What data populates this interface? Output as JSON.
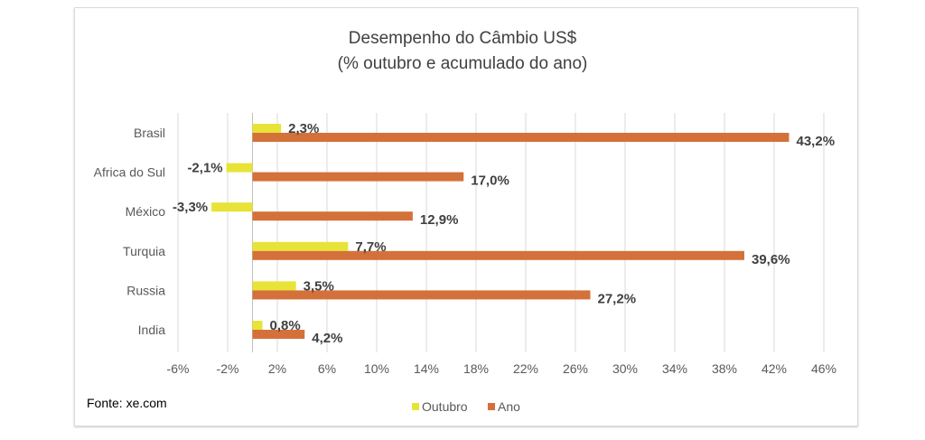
{
  "chart_data": {
    "type": "bar",
    "orientation": "horizontal",
    "title": "Desempenho do Câmbio US$",
    "subtitle": "(% outubro e acumulado do ano)",
    "categories": [
      "Brasil",
      "Africa do Sul",
      "México",
      "Turquia",
      "Russia",
      "India"
    ],
    "series": [
      {
        "name": "Outubro",
        "color": "#e8e337",
        "values": [
          2.3,
          -2.1,
          -3.3,
          7.7,
          3.5,
          0.8
        ],
        "labels": [
          "2,3%",
          "-2,1%",
          "-3,3%",
          "7,7%",
          "3,5%",
          "0,8%"
        ]
      },
      {
        "name": "Ano",
        "color": "#d4713a",
        "values": [
          43.2,
          17.0,
          12.9,
          39.6,
          27.2,
          4.2
        ],
        "labels": [
          "43,2%",
          "17,0%",
          "12,9%",
          "39,6%",
          "27,2%",
          "4,2%"
        ]
      }
    ],
    "xticks": [
      -6,
      -2,
      2,
      6,
      10,
      14,
      18,
      22,
      26,
      30,
      34,
      38,
      42,
      46
    ],
    "xtick_labels": [
      "-6%",
      "-2%",
      "2%",
      "6%",
      "10%",
      "14%",
      "18%",
      "22%",
      "26%",
      "30%",
      "34%",
      "38%",
      "42%",
      "46%"
    ],
    "xlim": [
      -6,
      46
    ],
    "grid": true,
    "legend": "bottom",
    "source": "Fonte: xe.com"
  }
}
